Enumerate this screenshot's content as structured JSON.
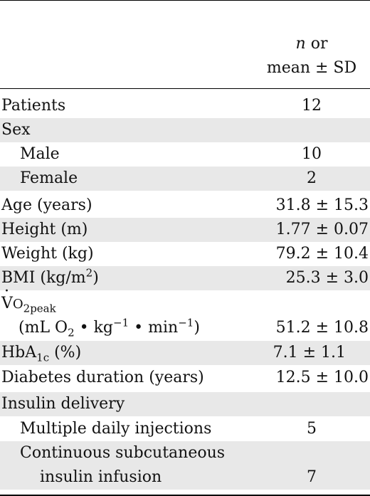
{
  "header": {
    "line1_n": "n",
    "line1_rest": " or",
    "line2": "mean ± SD"
  },
  "rows": [
    {
      "label": "Patients",
      "value": "12"
    },
    {
      "label": "Sex",
      "value": ""
    },
    {
      "label": "Male",
      "value": "10"
    },
    {
      "label": "Female",
      "value": "2"
    },
    {
      "label": "Age (years)",
      "value": "31.8 ± 15.3"
    },
    {
      "label": "Height (m)",
      "value": "1.77 ± 0.07"
    },
    {
      "label": "Weight (kg)",
      "value": "79.2 ± 10.4"
    },
    {
      "label_pre": "BMI (kg/m",
      "label_sup": "2",
      "label_post": ")",
      "value": "25.3 ± 3.0"
    },
    {
      "label_v": "V",
      "label_o": "O",
      "label_sub": "2peak",
      "label2_a": "(mL O",
      "label2_sub": "2",
      "label2_b": " • kg",
      "label2_sup1": "−1",
      "label2_c": " • min",
      "label2_sup2": "−1",
      "label2_d": ")",
      "value": "51.2 ± 10.8"
    },
    {
      "label_pre": "HbA",
      "label_sub": "1c",
      "label_post": " (%)",
      "value": "7.1 ± 1.1"
    },
    {
      "label": "Diabetes duration (years)",
      "value": "12.5 ± 10.0"
    },
    {
      "label": "Insulin delivery",
      "value": ""
    },
    {
      "label": "Multiple daily injections",
      "value": "5"
    },
    {
      "label1": "Continuous subcutaneous",
      "label2": "insulin infusion",
      "value": "7"
    }
  ]
}
